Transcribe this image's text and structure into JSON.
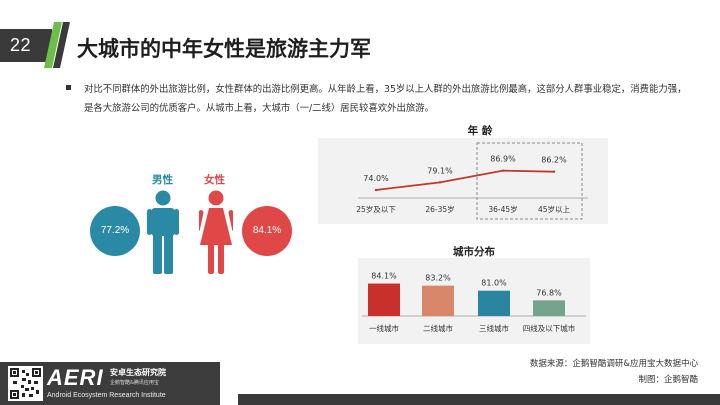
{
  "header": {
    "page_number": "22",
    "title": "大城市的中年女性是旅游主力军"
  },
  "intro": {
    "text": "对比不同群体的外出旅游比例，女性群体的出游比例更高。从年龄上看，35岁以上人群的外出旅游比例最高，这部分人群事业稳定，消费能力强，是各大旅游公司的优质客户。从城市上看，大城市（一/二线）居民较喜欢外出旅游。"
  },
  "colors": {
    "male": "#2a8aa5",
    "female": "#e04848",
    "line": "#c0392b",
    "accent_green": "#6cc04a",
    "city_bars": [
      "#c9302c",
      "#d9876b",
      "#2a86a0",
      "#76a38c"
    ]
  },
  "gender": {
    "male_label": "男性",
    "female_label": "女性",
    "male_value": "77.2%",
    "female_value": "84.1%",
    "male_icon": "male-person-icon",
    "female_icon": "female-person-icon"
  },
  "chart_data": [
    {
      "type": "line",
      "title": "年 龄",
      "categories": [
        "25岁及以下",
        "26-35岁",
        "36-45岁",
        "45岁以上"
      ],
      "values": [
        74.0,
        79.1,
        86.9,
        86.2
      ],
      "labels": [
        "74.0%",
        "79.1%",
        "86.9%",
        "86.2%"
      ],
      "highlighted_categories": [
        "36-45岁",
        "45岁以上"
      ],
      "grid": false
    },
    {
      "type": "bar",
      "title": "城市分布",
      "categories": [
        "一线城市",
        "二线城市",
        "三线城市",
        "四线及以下城市"
      ],
      "values": [
        84.1,
        83.2,
        81.0,
        76.8
      ],
      "labels": [
        "84.1%",
        "83.2%",
        "81.0%",
        "76.8%"
      ],
      "grid": false
    }
  ],
  "source": {
    "data_source": "数据来源：企鹅智酷调研&应用宝大数据中心",
    "made_by": "制图：企鹅智酷"
  },
  "footer": {
    "logo": "AERI",
    "org_name_cn": "安卓生态研究院",
    "org_sub": "企鹅智酷&腾讯应用宝",
    "org_name_en": "Android Ecosystem Research Institute",
    "qr_icon": "qr-code-icon"
  }
}
